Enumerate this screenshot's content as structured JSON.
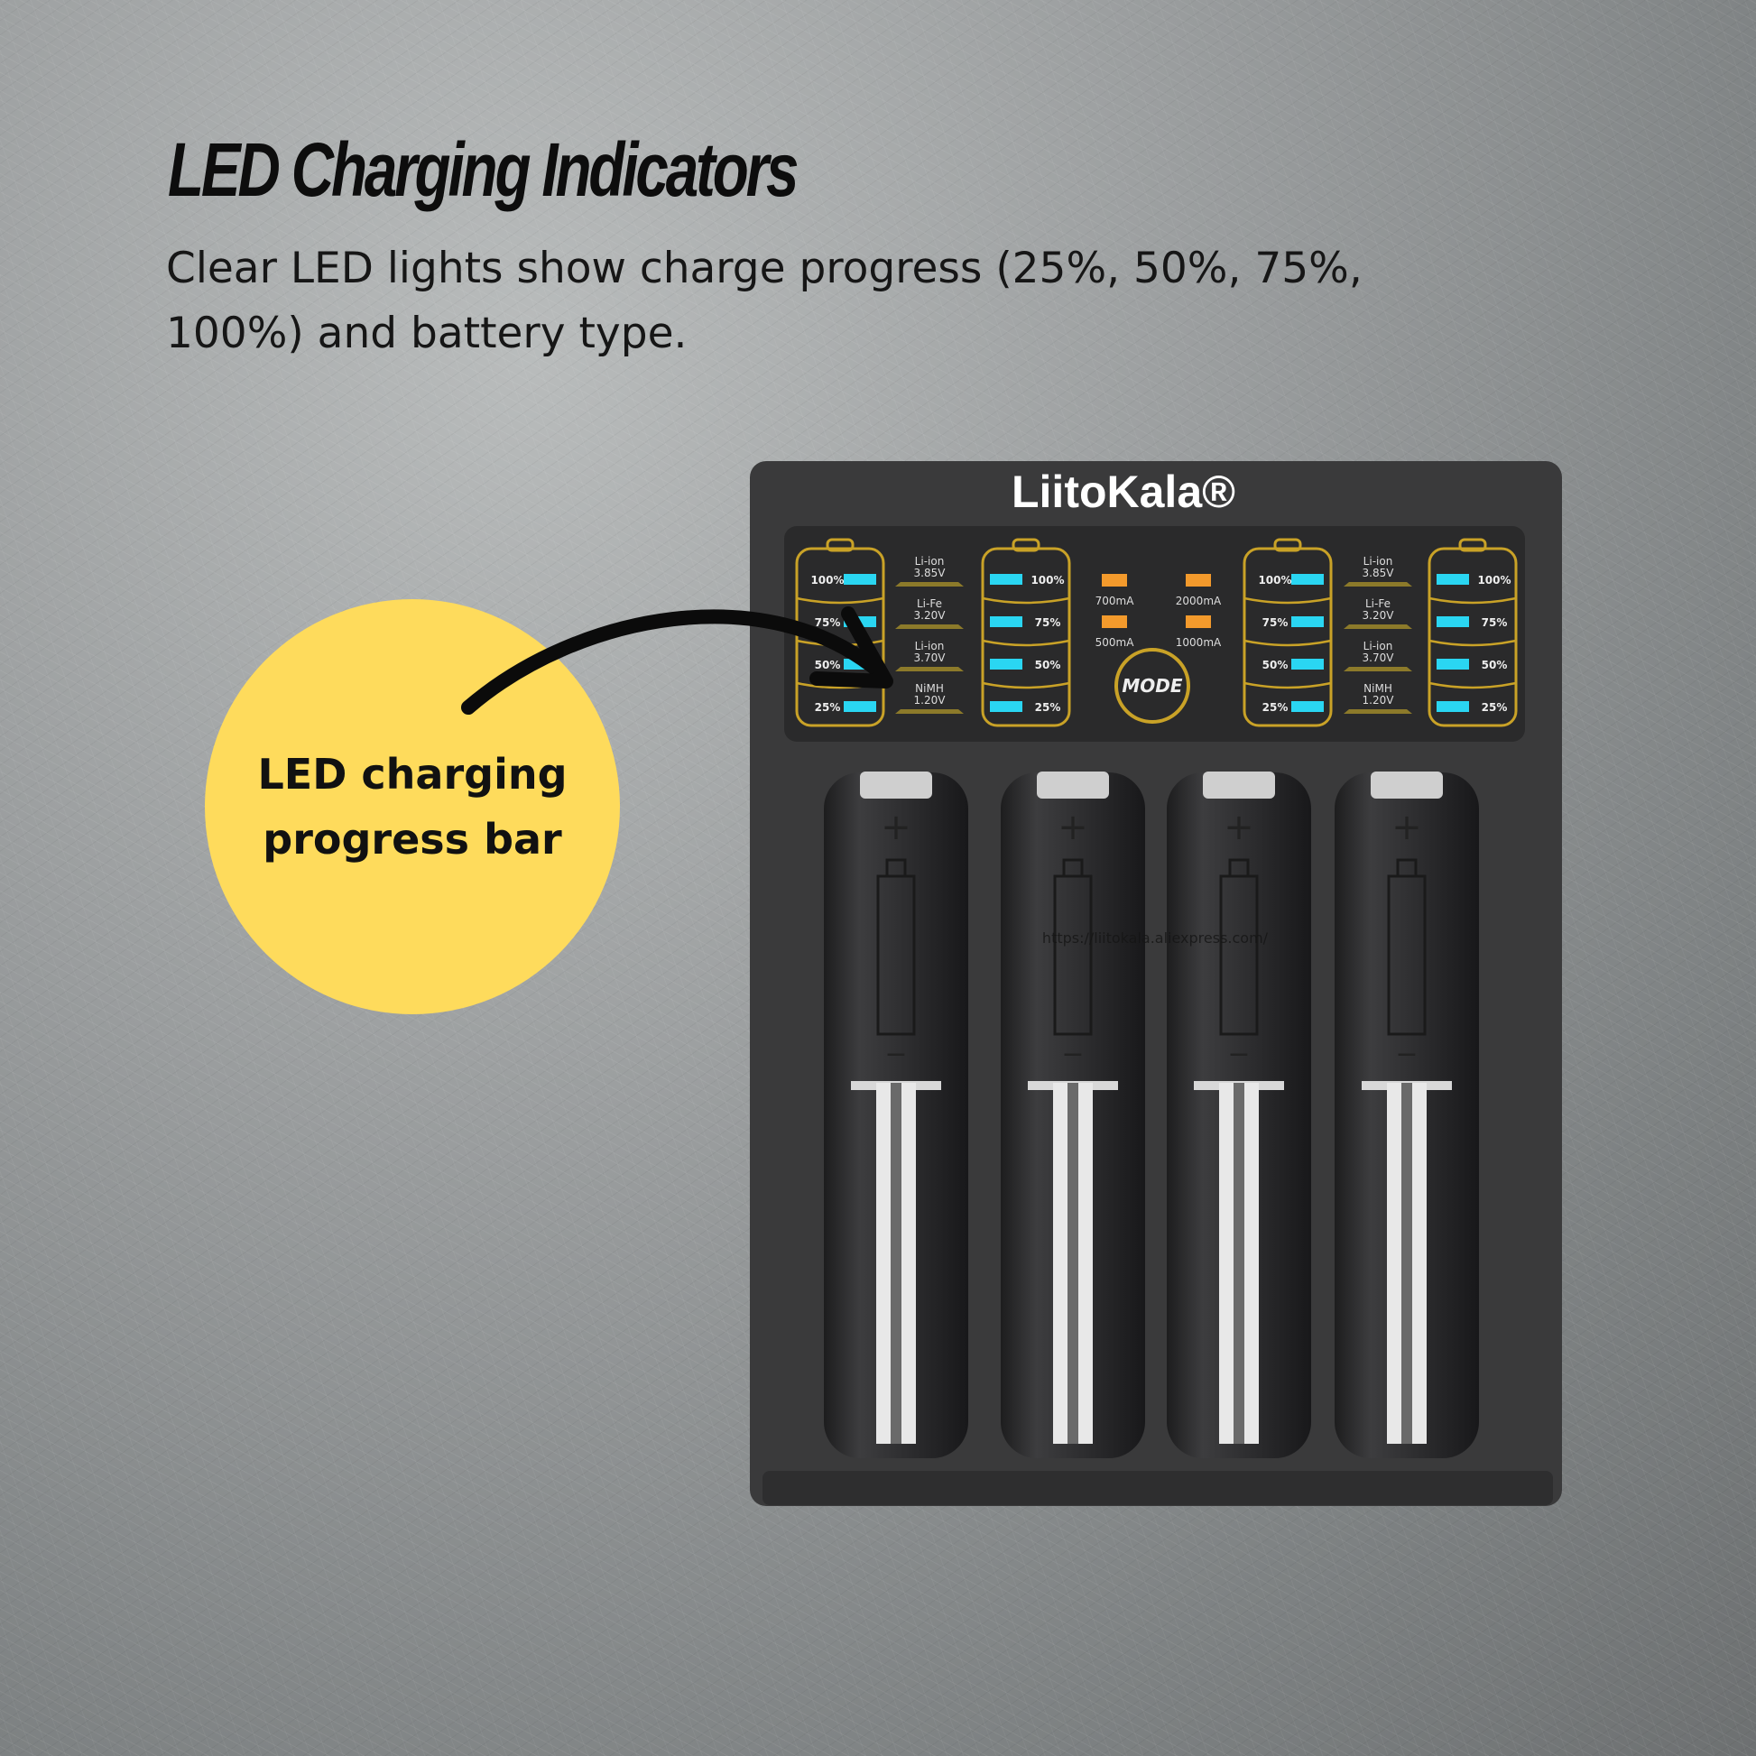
{
  "title": "LED Charging Indicators",
  "subtitle": "Clear LED lights show charge progress (25%, 50%, 75%, 100%) and battery type.",
  "callout": "LED charging progress bar",
  "charger": {
    "brand": "LiitoKala®",
    "levels": [
      "100%",
      "75%",
      "50%",
      "25%"
    ],
    "battery_types": [
      [
        "Li-ion",
        "3.85V"
      ],
      [
        "Li-Fe",
        "3.20V"
      ],
      [
        "Li-ion",
        "3.70V"
      ],
      [
        "NiMH",
        "1.20V"
      ]
    ],
    "currents": [
      "700mA",
      "2000mA",
      "500mA",
      "1000mA"
    ],
    "mode_button": "MODE",
    "url_text": "https://liitokala.aliexpress.com/",
    "slot_polarity": {
      "plus": "+",
      "minus": "−"
    }
  },
  "colors": {
    "led_level": "#2ad6f2",
    "led_current": "#f39a2c",
    "outline": "#c9a227",
    "callout": "#fedb5c",
    "body": "#3a3a3b"
  }
}
